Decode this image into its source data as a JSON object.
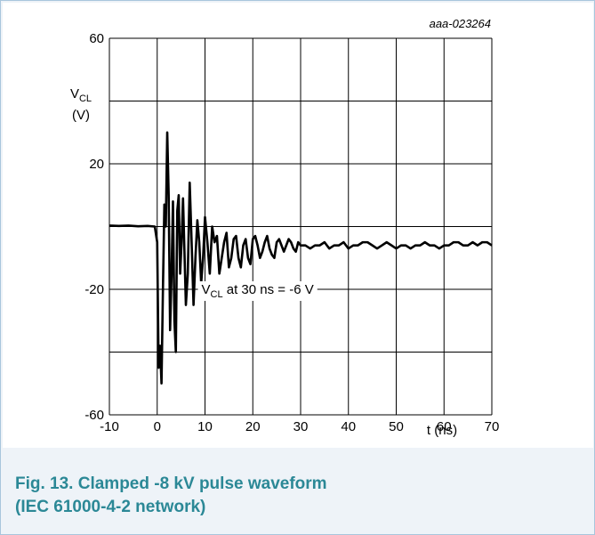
{
  "figure": {
    "reference": "aaa-023264",
    "caption_line1": "Fig. 13. Clamped -8 kV pulse waveform",
    "caption_line2": "(IEC 61000-4-2 network)"
  },
  "colors": {
    "caption": "#2b8896",
    "frame_border": "#a8c6dc",
    "frame_bg": "#eef3f8",
    "trace": "#000000",
    "grid": "#000000"
  },
  "chart_data": {
    "type": "line",
    "title": "",
    "xlabel": "t (ns)",
    "ylabel_main": "V",
    "ylabel_sub": "CL",
    "ylabel_unit": "(V)",
    "xlim": [
      -10,
      70
    ],
    "ylim": [
      -60,
      60
    ],
    "x_ticks": [
      -10,
      0,
      10,
      20,
      30,
      40,
      50,
      60,
      70
    ],
    "y_ticks": [
      -60,
      -40,
      -20,
      0,
      20,
      40,
      60
    ],
    "y_tick_labels": [
      "-60",
      "",
      "-20",
      "",
      "20",
      "",
      "60"
    ],
    "grid": true,
    "annotation": {
      "prefix": "V",
      "sub": "CL",
      "suffix": " at 30 ns = -6 V",
      "at": [
        21,
        -20
      ]
    },
    "series": [
      {
        "x": [
          -10,
          -8,
          -6,
          -4,
          -2,
          -0.5,
          0,
          0.3,
          0.6,
          0.9,
          1.2,
          1.5,
          1.8,
          2.1,
          2.4,
          2.7,
          3.0,
          3.3,
          3.6,
          3.9,
          4.2,
          4.5,
          4.8,
          5.1,
          5.4,
          5.7,
          6.0,
          6.4,
          6.8,
          7.2,
          7.6,
          8.0,
          8.4,
          8.8,
          9.2,
          9.6,
          10.0,
          10.5,
          11.0,
          11.5,
          12.0,
          12.5,
          13.0,
          13.5,
          14.0,
          14.5,
          15.0,
          15.5,
          16.0,
          16.5,
          17.0,
          17.5,
          18.0,
          18.5,
          19.0,
          19.5,
          20.0,
          20.5,
          21.0,
          21.5,
          22.0,
          22.5,
          23.0,
          23.5,
          24.0,
          24.5,
          25.0,
          25.5,
          26.0,
          26.5,
          27.0,
          27.5,
          28.0,
          28.5,
          29.0,
          29.5,
          30.0,
          31,
          32,
          33,
          34,
          35,
          36,
          37,
          38,
          39,
          40,
          41,
          42,
          43,
          44,
          45,
          46,
          47,
          48,
          49,
          50,
          51,
          52,
          53,
          54,
          55,
          56,
          57,
          58,
          59,
          60,
          61,
          62,
          63,
          64,
          65,
          66,
          67,
          68,
          69,
          70
        ],
        "values": [
          0.3,
          0.2,
          0.3,
          0.1,
          0.2,
          0.0,
          -5,
          -45,
          -38,
          -50,
          -20,
          7,
          0,
          30,
          10,
          -33,
          -15,
          8,
          -30,
          -40,
          5,
          10,
          -15,
          -5,
          9,
          -8,
          -25,
          -15,
          14,
          -5,
          -25,
          -10,
          2,
          -5,
          -18,
          -10,
          3,
          -5,
          -15,
          0,
          -5,
          -3,
          -15,
          -10,
          -5,
          -2,
          -13,
          -10,
          -4,
          -3,
          -10,
          -13,
          -6,
          -4,
          -10,
          -12,
          -4,
          -3,
          -6,
          -10,
          -8,
          -5,
          -3,
          -7,
          -9,
          -10,
          -5,
          -4,
          -6,
          -8,
          -6,
          -4,
          -5,
          -7,
          -8,
          -5,
          -6,
          -6,
          -7,
          -6,
          -6,
          -5,
          -7,
          -6,
          -6,
          -5,
          -7,
          -6,
          -6,
          -5,
          -5,
          -6,
          -7,
          -6,
          -5,
          -6,
          -7,
          -6,
          -6,
          -7,
          -6,
          -6,
          -5,
          -6,
          -6,
          -7,
          -6,
          -6,
          -5,
          -5,
          -6,
          -6,
          -5,
          -6,
          -5,
          -5,
          -6
        ]
      }
    ]
  }
}
